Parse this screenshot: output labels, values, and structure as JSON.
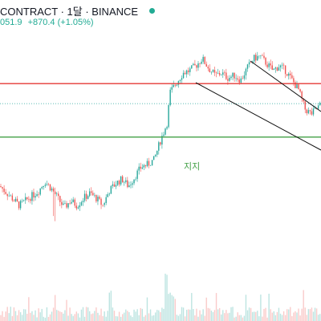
{
  "header": {
    "title": "CONTRACT · 1달 · BINANCE",
    "status_color": "#22ab94",
    "price": "051.9",
    "change": "+870.4 (+1.05%)"
  },
  "colors": {
    "up": "#26a69a",
    "down": "#ef5350",
    "resistance": "#e53935",
    "support": "#43a047",
    "trendline": "#111111"
  },
  "chart_data": {
    "type": "candlestick",
    "title": "",
    "xlabel": "",
    "ylabel": "",
    "ylim": [
      0,
      100
    ],
    "annotations": {
      "support_label": "지지"
    },
    "horizontal_lines": [
      {
        "kind": "resistance",
        "value": 78.6
      },
      {
        "kind": "support",
        "value": 56.4
      },
      {
        "kind": "dotted-price",
        "value": 70.3
      }
    ],
    "trendlines": [
      {
        "from": [
          78,
          88
        ],
        "to": [
          100,
          67
        ]
      },
      {
        "from": [
          61,
          79
        ],
        "to": [
          100,
          51
        ]
      }
    ],
    "series": [
      {
        "name": "",
        "anchors": [
          [
            0,
            36
          ],
          [
            3,
            32
          ],
          [
            6,
            28
          ],
          [
            9,
            31
          ],
          [
            12,
            34
          ],
          [
            14,
            38
          ],
          [
            16,
            35
          ],
          [
            18,
            31
          ],
          [
            20,
            27
          ],
          [
            22,
            30
          ],
          [
            24,
            28
          ],
          [
            26,
            31
          ],
          [
            28,
            33
          ],
          [
            30,
            31
          ],
          [
            32,
            28
          ],
          [
            34,
            34
          ],
          [
            36,
            37
          ],
          [
            38,
            39
          ],
          [
            40,
            36
          ],
          [
            42,
            40
          ],
          [
            44,
            44
          ],
          [
            46,
            45
          ],
          [
            48,
            47
          ],
          [
            50,
            55
          ],
          [
            52,
            62
          ],
          [
            53,
            75
          ],
          [
            55,
            79
          ],
          [
            57,
            83
          ],
          [
            59,
            84
          ],
          [
            61,
            86
          ],
          [
            63,
            89
          ],
          [
            65,
            85
          ],
          [
            67,
            82
          ],
          [
            69,
            83
          ],
          [
            71,
            81
          ],
          [
            73,
            82
          ],
          [
            75,
            80
          ],
          [
            77,
            85
          ],
          [
            79,
            89
          ],
          [
            81,
            90
          ],
          [
            83,
            87
          ],
          [
            85,
            84
          ],
          [
            87,
            86
          ],
          [
            89,
            84
          ],
          [
            91,
            80
          ],
          [
            93,
            76
          ],
          [
            95,
            68
          ],
          [
            97,
            66
          ],
          [
            100,
            70
          ]
        ]
      }
    ]
  }
}
